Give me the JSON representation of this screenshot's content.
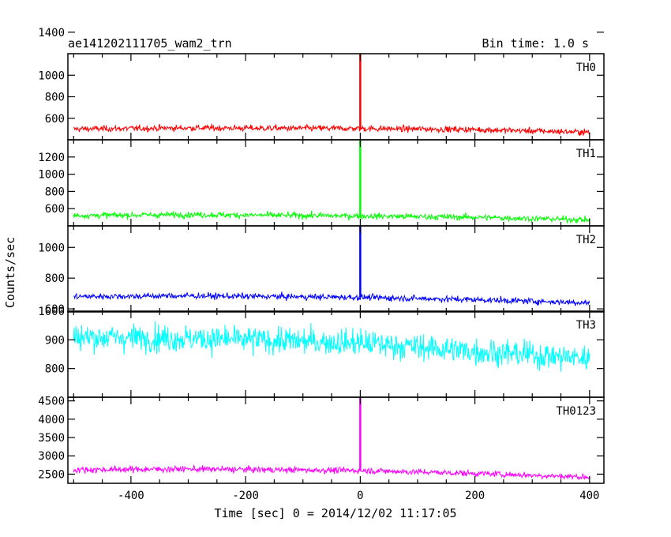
{
  "chart_data": {
    "type": "line",
    "title_left": "ae141202111705_wam2_trn",
    "title_right": "Bin time: 1.0 s",
    "xlabel": "Time [sec] 0 = 2014/12/02 11:17:05",
    "ylabel": "Counts/sec",
    "xlim": [
      -510,
      425
    ],
    "x_ticks": [
      -400,
      -200,
      0,
      200,
      400
    ],
    "bin_time_s": 1.0,
    "series": [
      {
        "name": "TH0",
        "color": "#ff0000",
        "ylim": [
          400,
          1200
        ],
        "y_ticks": [
          1000,
          800,
          600,
          1400
        ],
        "baseline": [
          [
            -500,
            500
          ],
          [
            -300,
            510
          ],
          [
            0,
            505
          ],
          [
            200,
            495
          ],
          [
            400,
            470
          ]
        ],
        "peak": {
          "x": 0,
          "y": 1200
        }
      },
      {
        "name": "TH1",
        "color": "#00ff00",
        "ylim": [
          400,
          1400
        ],
        "y_ticks": [
          1200,
          1000,
          800,
          600
        ],
        "baseline": [
          [
            -500,
            520
          ],
          [
            -300,
            530
          ],
          [
            0,
            515
          ],
          [
            200,
            500
          ],
          [
            400,
            470
          ]
        ],
        "peak": {
          "x": 0,
          "y": 1400
        }
      },
      {
        "name": "TH2",
        "color": "#0000ff",
        "ylim": [
          580,
          1140
        ],
        "y_ticks": [
          1000,
          800,
          600
        ],
        "baseline": [
          [
            -500,
            680
          ],
          [
            -300,
            685
          ],
          [
            0,
            675
          ],
          [
            200,
            660
          ],
          [
            400,
            640
          ]
        ],
        "peak": {
          "x": 0,
          "y": 1140
        }
      },
      {
        "name": "TH3",
        "color": "#00ffff",
        "ylim": [
          700,
          1000
        ],
        "y_ticks": [
          1000,
          900,
          800
        ],
        "baseline": [
          [
            -500,
            910
          ],
          [
            -300,
            905
          ],
          [
            0,
            890
          ],
          [
            200,
            860
          ],
          [
            400,
            835
          ]
        ],
        "peak": null
      },
      {
        "name": "TH0123",
        "color": "#ff00ff",
        "ylim": [
          2250,
          4600
        ],
        "y_ticks": [
          4500,
          4000,
          3500,
          3000,
          2500
        ],
        "baseline": [
          [
            -500,
            2620
          ],
          [
            -300,
            2640
          ],
          [
            0,
            2600
          ],
          [
            200,
            2520
          ],
          [
            400,
            2420
          ]
        ],
        "peak": {
          "x": 0,
          "y": 4600
        }
      }
    ]
  }
}
